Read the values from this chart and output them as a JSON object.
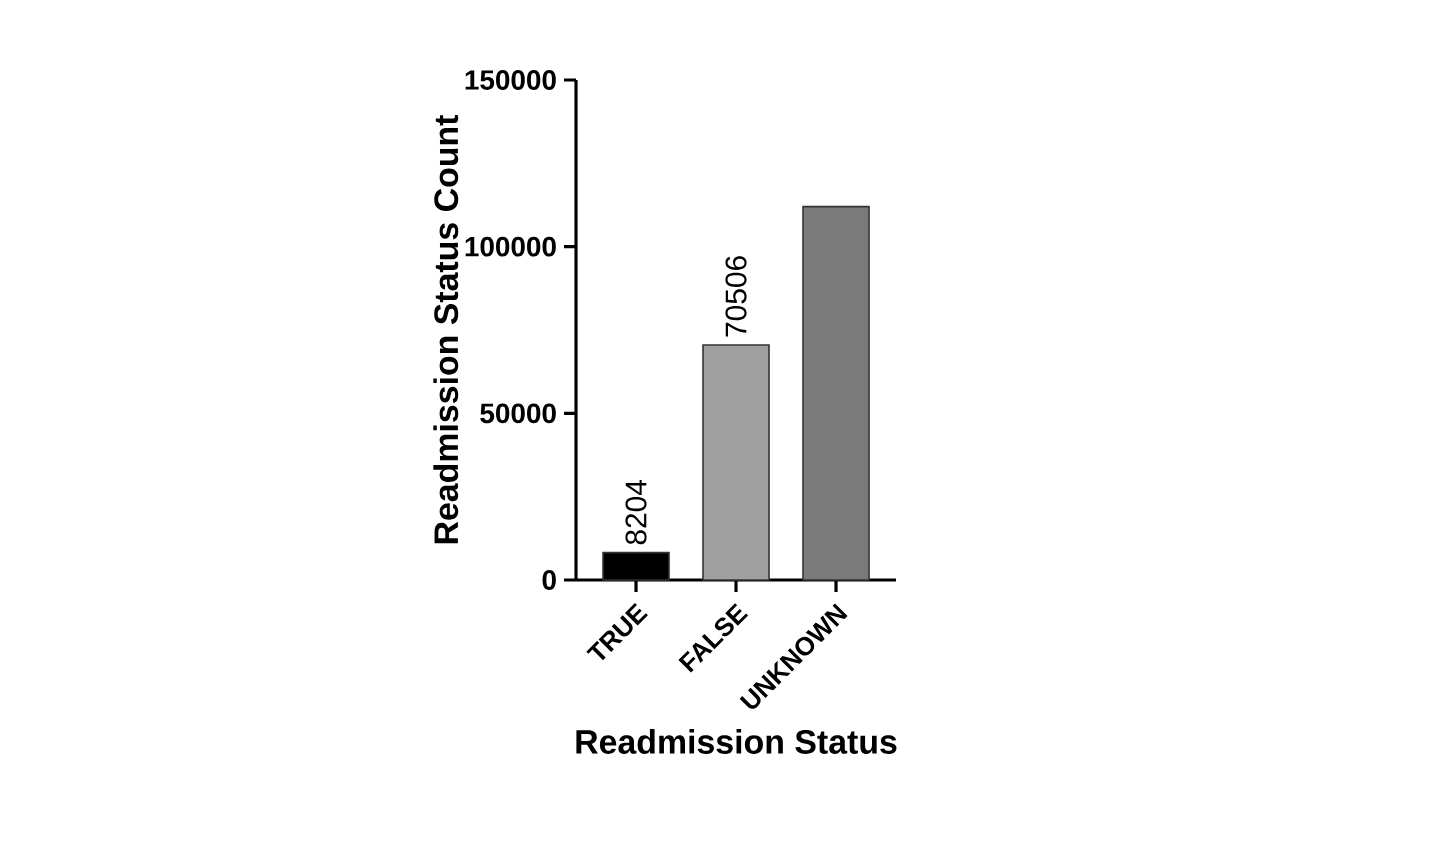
{
  "chart_data": {
    "type": "bar",
    "xlabel": "Readmission Status",
    "ylabel": "Readmission Status Count",
    "categories": [
      "TRUE",
      "FALSE",
      "UNKNOWN"
    ],
    "values": [
      8204,
      70506,
      112000
    ],
    "colors": [
      "#000000",
      "#a0a0a0",
      "#7a7a7a"
    ],
    "value_labels": [
      "8204",
      "70506",
      null
    ],
    "ylim": [
      0,
      150000
    ],
    "yticks": [
      0,
      50000,
      100000,
      150000
    ],
    "grid": false
  }
}
